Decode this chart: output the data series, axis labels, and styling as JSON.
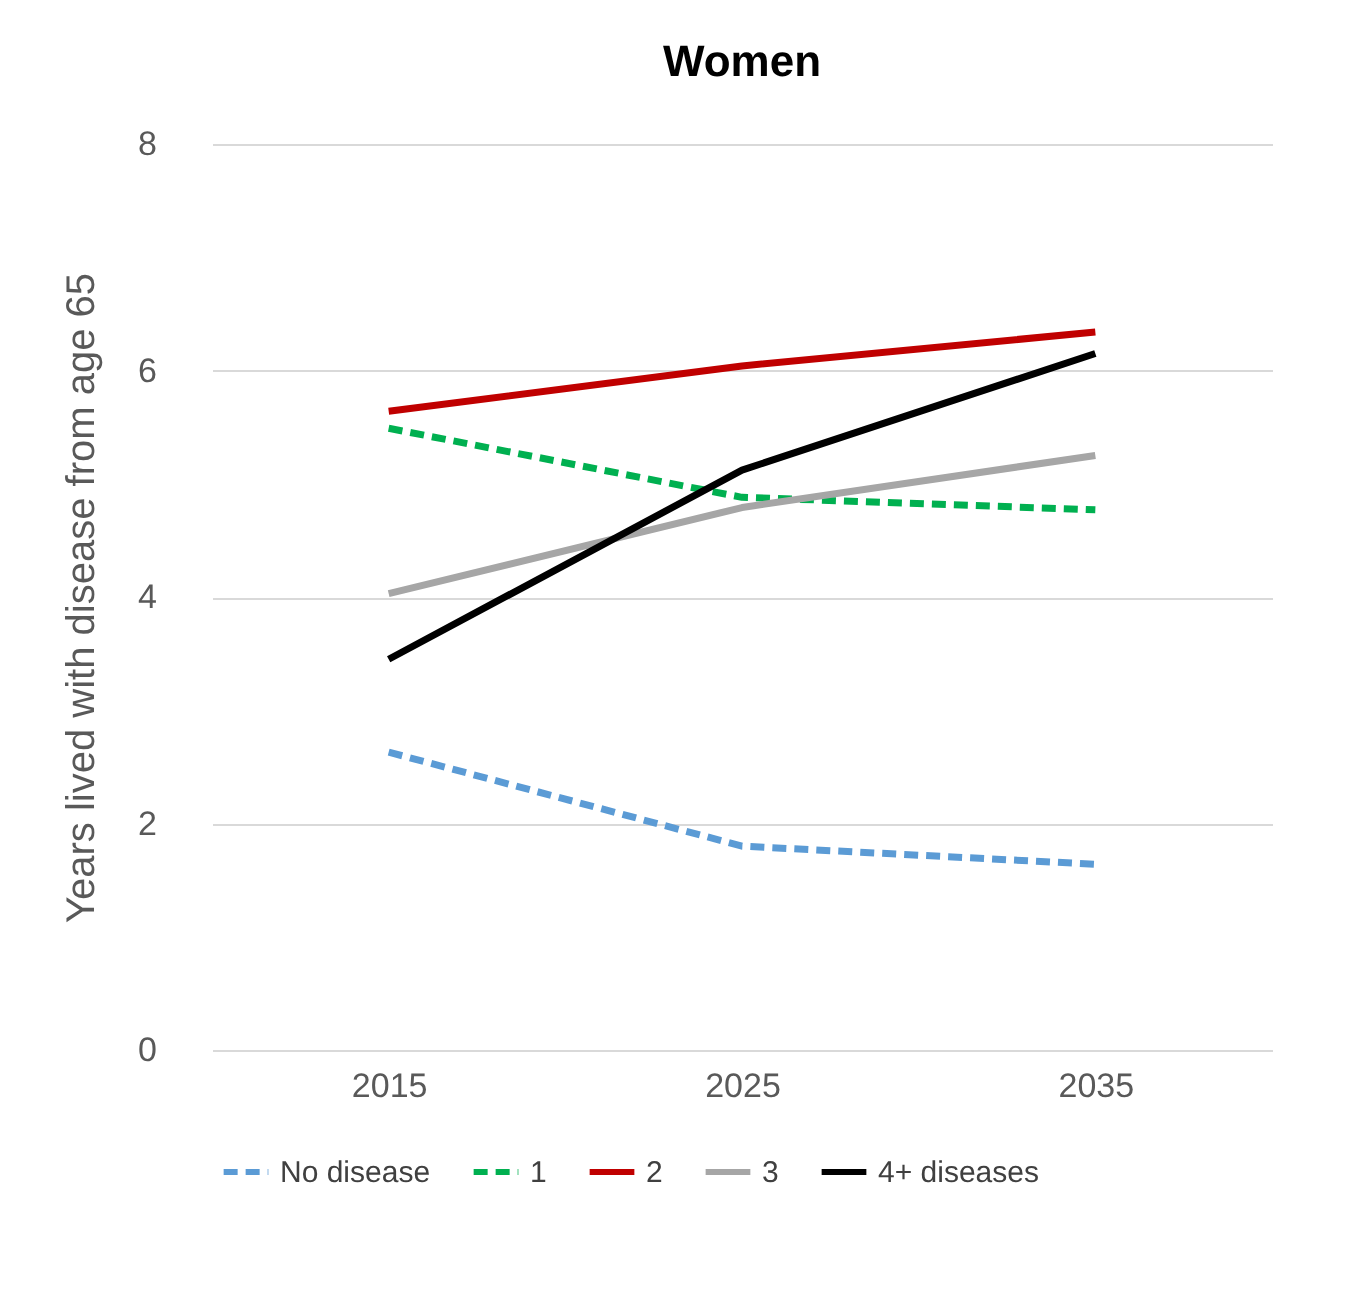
{
  "chart_data": {
    "type": "line",
    "title": "Women",
    "ylabel": "Years lived with disease from age 65",
    "categories": [
      "2015",
      "2025",
      "2035"
    ],
    "series": [
      {
        "name": "No disease",
        "color": "#5b9bd5",
        "line_style": "dashed",
        "values": [
          2.63,
          1.8,
          1.64
        ]
      },
      {
        "name": "1",
        "color": "#00b050",
        "line_style": "dashed",
        "values": [
          5.49,
          4.88,
          4.77
        ]
      },
      {
        "name": "2",
        "color": "#c00000",
        "line_style": "solid",
        "values": [
          5.64,
          6.04,
          6.34
        ]
      },
      {
        "name": "3",
        "color": "#a6a6a6",
        "line_style": "solid",
        "values": [
          4.03,
          4.79,
          5.25
        ]
      },
      {
        "name": "4+ diseases",
        "color": "#000000",
        "line_style": "solid",
        "values": [
          3.45,
          5.12,
          6.15
        ]
      }
    ],
    "ylim": [
      0,
      8
    ],
    "yticks": [
      0,
      2,
      4,
      6,
      8
    ],
    "grid": "y",
    "legend": "bottom",
    "marker": "none"
  }
}
